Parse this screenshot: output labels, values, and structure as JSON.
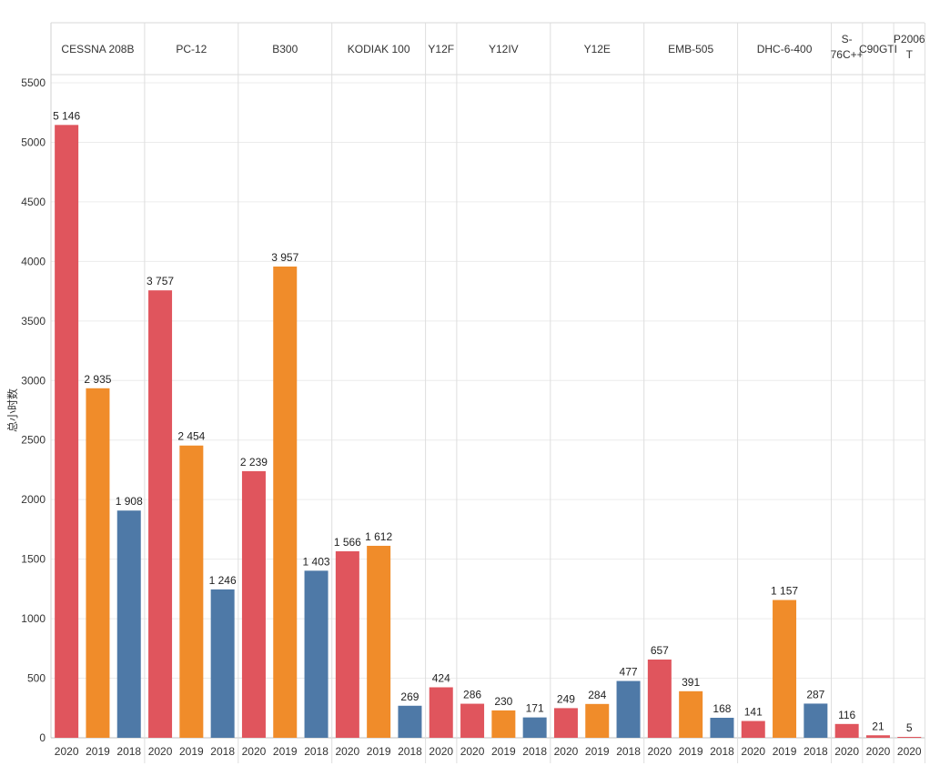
{
  "chart_data": {
    "type": "bar",
    "ylabel": "总小时数",
    "ylim": [
      0,
      5500
    ],
    "yticks": [
      0,
      500,
      1000,
      1500,
      2000,
      2500,
      3000,
      3500,
      4000,
      4500,
      5000,
      5500
    ],
    "grid": true,
    "year_colors": {
      "2020": "#e0555d",
      "2019": "#f08c2a",
      "2018": "#4e79a7"
    },
    "groups": [
      {
        "name": "CESSNA 208B",
        "bars": [
          {
            "year": "2020",
            "value": 5146,
            "label": "5 146"
          },
          {
            "year": "2019",
            "value": 2935,
            "label": "2 935"
          },
          {
            "year": "2018",
            "value": 1908,
            "label": "1 908"
          }
        ]
      },
      {
        "name": "PC-12",
        "bars": [
          {
            "year": "2020",
            "value": 3757,
            "label": "3 757"
          },
          {
            "year": "2019",
            "value": 2454,
            "label": "2 454"
          },
          {
            "year": "2018",
            "value": 1246,
            "label": "1 246"
          }
        ]
      },
      {
        "name": "B300",
        "bars": [
          {
            "year": "2020",
            "value": 2239,
            "label": "2 239"
          },
          {
            "year": "2019",
            "value": 3957,
            "label": "3 957"
          },
          {
            "year": "2018",
            "value": 1403,
            "label": "1 403"
          }
        ]
      },
      {
        "name": "KODIAK 100",
        "bars": [
          {
            "year": "2020",
            "value": 1566,
            "label": "1 566"
          },
          {
            "year": "2019",
            "value": 1612,
            "label": "1 612"
          },
          {
            "year": "2018",
            "value": 269,
            "label": "269"
          }
        ]
      },
      {
        "name": "Y12F",
        "bars": [
          {
            "year": "2020",
            "value": 424,
            "label": "424"
          }
        ]
      },
      {
        "name": "Y12IV",
        "bars": [
          {
            "year": "2020",
            "value": 286,
            "label": "286"
          },
          {
            "year": "2019",
            "value": 230,
            "label": "230"
          },
          {
            "year": "2018",
            "value": 171,
            "label": "171"
          }
        ]
      },
      {
        "name": "Y12E",
        "bars": [
          {
            "year": "2020",
            "value": 249,
            "label": "249"
          },
          {
            "year": "2019",
            "value": 284,
            "label": "284"
          },
          {
            "year": "2018",
            "value": 477,
            "label": "477"
          }
        ]
      },
      {
        "name": "EMB-505",
        "bars": [
          {
            "year": "2020",
            "value": 657,
            "label": "657"
          },
          {
            "year": "2019",
            "value": 391,
            "label": "391"
          },
          {
            "year": "2018",
            "value": 168,
            "label": "168"
          }
        ]
      },
      {
        "name": "DHC-6-400",
        "bars": [
          {
            "year": "2020",
            "value": 141,
            "label": "141"
          },
          {
            "year": "2019",
            "value": 1157,
            "label": "1 157"
          },
          {
            "year": "2018",
            "value": 287,
            "label": "287"
          }
        ]
      },
      {
        "name": "S-76C++",
        "header_lines": [
          "S-",
          "76C++"
        ],
        "bars": [
          {
            "year": "2020",
            "value": 116,
            "label": "116"
          }
        ]
      },
      {
        "name": "C90GTI",
        "bars": [
          {
            "year": "2020",
            "value": 21,
            "label": "21"
          }
        ]
      },
      {
        "name": "P2006T",
        "header_lines": [
          "P2006",
          "T"
        ],
        "bars": [
          {
            "year": "2020",
            "value": 5,
            "label": "5"
          }
        ]
      }
    ]
  }
}
